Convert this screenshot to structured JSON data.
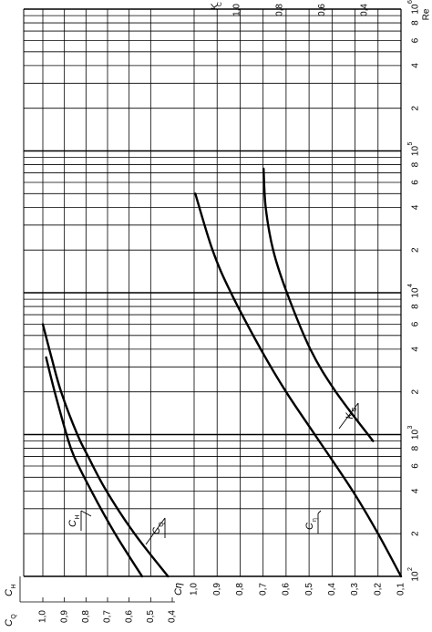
{
  "chart_data": {
    "type": "line",
    "x_scale": "log",
    "x_label": "Re",
    "x_ticks": [
      {
        "value": 100,
        "label": "10",
        "exp": "2"
      },
      {
        "value": 200,
        "label": "2"
      },
      {
        "value": 400,
        "label": "4"
      },
      {
        "value": 600,
        "label": "6"
      },
      {
        "value": 800,
        "label": "8"
      },
      {
        "value": 1000,
        "label": "10",
        "exp": "3"
      },
      {
        "value": 2000,
        "label": "2"
      },
      {
        "value": 4000,
        "label": "4"
      },
      {
        "value": 6000,
        "label": "6"
      },
      {
        "value": 8000,
        "label": "8"
      },
      {
        "value": 10000,
        "label": "10",
        "exp": "4"
      },
      {
        "value": 20000,
        "label": "2"
      },
      {
        "value": 40000,
        "label": "4"
      },
      {
        "value": 60000,
        "label": "6"
      },
      {
        "value": 80000,
        "label": "8"
      },
      {
        "value": 100000,
        "label": "10",
        "exp": "5"
      },
      {
        "value": 200000,
        "label": "2"
      },
      {
        "value": 400000,
        "label": "4"
      },
      {
        "value": 600000,
        "label": "6"
      },
      {
        "value": 800000,
        "label": "8"
      },
      {
        "value": 1000000,
        "label": "10",
        "exp": "6"
      }
    ],
    "c_eta_axis": {
      "label": "Cη",
      "range": [
        0.1,
        1.0
      ],
      "ticks": [
        {
          "value": 1.0,
          "label": "1,0"
        },
        {
          "value": 0.9,
          "label": "0,9"
        },
        {
          "value": 0.8,
          "label": "0,8"
        },
        {
          "value": 0.7,
          "label": "0,7"
        },
        {
          "value": 0.6,
          "label": "0,6"
        },
        {
          "value": 0.5,
          "label": "0,5"
        },
        {
          "value": 0.4,
          "label": "0,4"
        },
        {
          "value": 0.3,
          "label": "0,3"
        },
        {
          "value": 0.2,
          "label": "0,2"
        },
        {
          "value": 0.1,
          "label": "0,1"
        }
      ]
    },
    "ch_cq_axis": {
      "label_h": "C",
      "sub_h": "H",
      "label_q": "C",
      "sub_q": "Q",
      "range": [
        0.4,
        1.0
      ],
      "ticks": [
        {
          "value": 1.0,
          "label": "1,0"
        },
        {
          "value": 0.9,
          "label": "0,9"
        },
        {
          "value": 0.8,
          "label": "0,8"
        },
        {
          "value": 0.7,
          "label": "0,7"
        },
        {
          "value": 0.6,
          "label": "0,6"
        },
        {
          "value": 0.5,
          "label": "0,5"
        },
        {
          "value": 0.4,
          "label": "0,4"
        }
      ]
    },
    "kc_axis": {
      "label": "K",
      "sub": "C",
      "range": [
        0.4,
        1.0
      ],
      "ticks": [
        {
          "value": 1.0,
          "label": "1,0"
        },
        {
          "value": 0.8,
          "label": "0,8"
        },
        {
          "value": 0.6,
          "label": "0,6"
        },
        {
          "value": 0.4,
          "label": "0,4"
        }
      ]
    },
    "series": [
      {
        "name": "CH",
        "label_main": "C",
        "label_sub": "H",
        "axis": "ch_cq",
        "points": [
          [
            100,
            0.54
          ],
          [
            200,
            0.665
          ],
          [
            400,
            0.775
          ],
          [
            700,
            0.855
          ],
          [
            1000,
            0.89
          ],
          [
            2000,
            0.945
          ],
          [
            3500,
            0.985
          ]
        ]
      },
      {
        "name": "CQ",
        "label_main": "C",
        "label_sub": "Q",
        "axis": "ch_cq",
        "points": [
          [
            100,
            0.42
          ],
          [
            200,
            0.575
          ],
          [
            400,
            0.705
          ],
          [
            700,
            0.79
          ],
          [
            1000,
            0.84
          ],
          [
            2000,
            0.915
          ],
          [
            3500,
            0.96
          ],
          [
            6000,
            1.0
          ]
        ]
      },
      {
        "name": "Cη",
        "label_main": "C",
        "label_sub": "η",
        "axis": "c_eta",
        "points": [
          [
            100,
            0.1
          ],
          [
            200,
            0.2
          ],
          [
            400,
            0.31
          ],
          [
            1000,
            0.475
          ],
          [
            2000,
            0.6
          ],
          [
            4000,
            0.71
          ],
          [
            10000,
            0.84
          ],
          [
            20000,
            0.92
          ],
          [
            50000,
            0.995
          ]
        ]
      },
      {
        "name": "KC",
        "label_main": "K",
        "label_sub": "C",
        "axis": "kc",
        "points": [
          [
            900,
            0.36
          ],
          [
            2000,
            0.535
          ],
          [
            4000,
            0.655
          ],
          [
            10000,
            0.765
          ],
          [
            20000,
            0.83
          ],
          [
            40000,
            0.865
          ],
          [
            75000,
            0.875
          ]
        ]
      }
    ]
  }
}
